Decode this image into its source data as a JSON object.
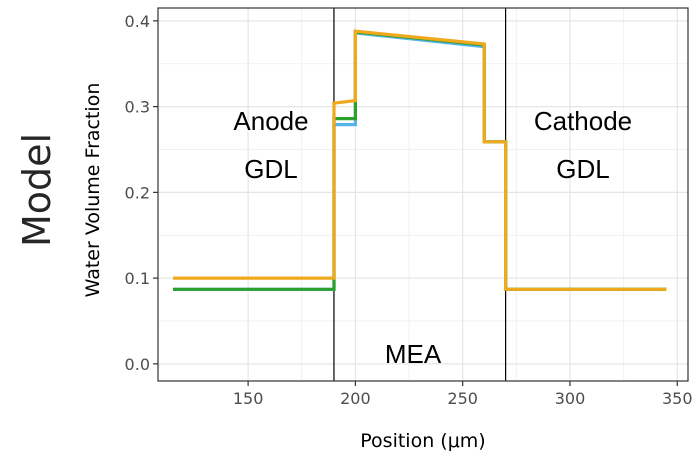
{
  "side_label": "Model",
  "chart_data": {
    "type": "line",
    "xlabel": "Position (μm)",
    "ylabel": "Water Volume Fraction",
    "xlim": [
      108,
      355
    ],
    "ylim": [
      -0.02,
      0.415
    ],
    "x_ticks": [
      "150",
      "200",
      "250",
      "300",
      "350"
    ],
    "y_ticks": [
      "0.0",
      "0.1",
      "0.2",
      "0.3",
      "0.4"
    ],
    "grid": true,
    "legend": "none",
    "region_labels": {
      "anode": [
        "Anode",
        "GDL"
      ],
      "cathode": [
        "Cathode",
        "GDL"
      ],
      "mea": "MEA"
    },
    "boundaries": [
      190,
      270
    ],
    "series": [
      {
        "color": "#56B4E9",
        "points": [
          [
            115,
            0.087
          ],
          [
            190,
            0.087
          ],
          [
            190,
            0.279
          ],
          [
            200,
            0.279
          ],
          [
            200,
            0.386
          ],
          [
            260,
            0.37
          ],
          [
            260,
            0.259
          ],
          [
            270,
            0.259
          ],
          [
            270,
            0.087
          ],
          [
            345,
            0.087
          ]
        ]
      },
      {
        "color": "#2CA02C",
        "points": [
          [
            115,
            0.087
          ],
          [
            190,
            0.087
          ],
          [
            190,
            0.286
          ],
          [
            200,
            0.286
          ],
          [
            200,
            0.387
          ],
          [
            260,
            0.372
          ],
          [
            260,
            0.259
          ],
          [
            270,
            0.259
          ],
          [
            270,
            0.087
          ],
          [
            345,
            0.087
          ]
        ]
      },
      {
        "color": "#F0A81C",
        "points": [
          [
            115,
            0.1
          ],
          [
            190,
            0.1
          ],
          [
            190,
            0.304
          ],
          [
            200,
            0.307
          ],
          [
            200,
            0.388
          ],
          [
            260,
            0.373
          ],
          [
            260,
            0.259
          ],
          [
            270,
            0.259
          ],
          [
            270,
            0.087
          ],
          [
            345,
            0.087
          ]
        ]
      }
    ]
  }
}
